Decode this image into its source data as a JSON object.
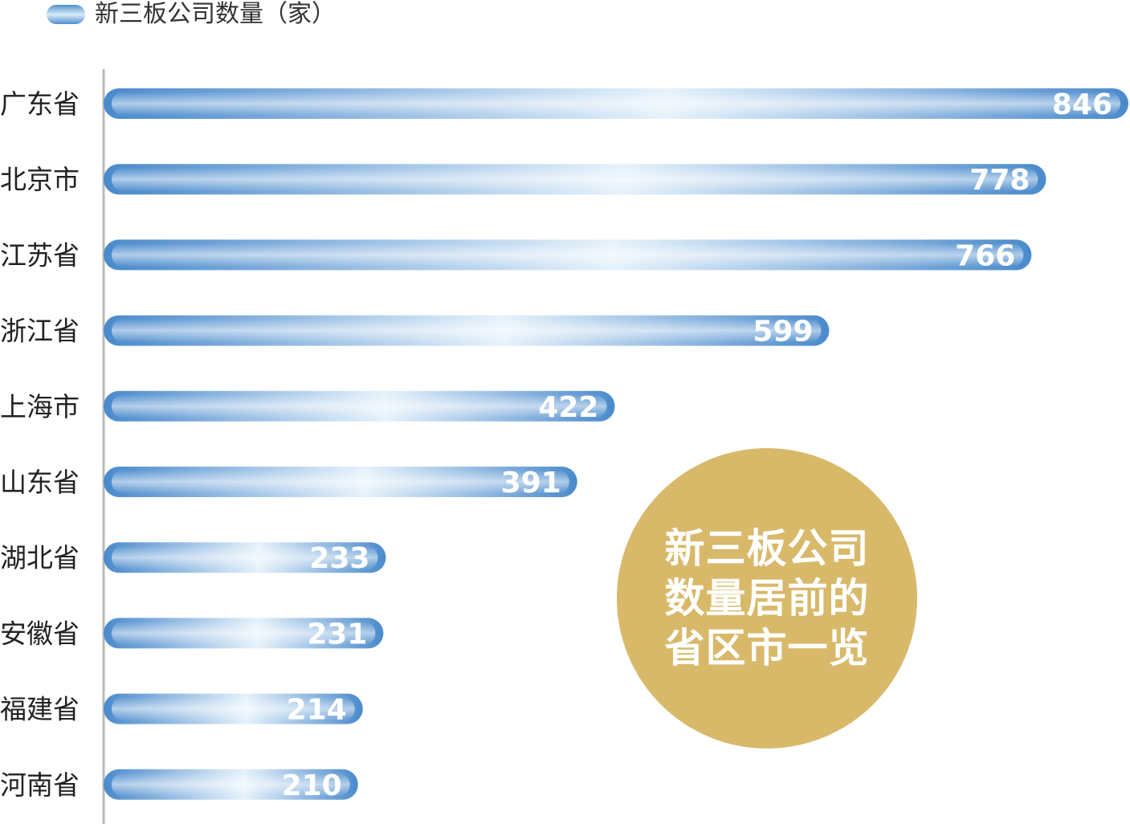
{
  "legend": {
    "label": "新三板公司数量（家）"
  },
  "badge": {
    "text": "新三板公司数量居前的省区市一览"
  },
  "colors": {
    "bar_dark": "#4a8acc",
    "bar_light": "#e6f2fb",
    "badge": "#d8b96a",
    "axis": "#b9b9b9"
  },
  "chart_data": {
    "type": "bar",
    "orientation": "horizontal",
    "categories": [
      "广东省",
      "北京市",
      "江苏省",
      "浙江省",
      "上海市",
      "山东省",
      "湖北省",
      "安徽省",
      "福建省",
      "河南省"
    ],
    "series": [
      {
        "name": "新三板公司数量（家）",
        "values": [
          846,
          778,
          766,
          599,
          422,
          391,
          233,
          231,
          214,
          210
        ]
      }
    ],
    "data_labels": [
      "846",
      "778",
      "766",
      "599",
      "422",
      "391",
      "233",
      "231",
      "214",
      "210"
    ],
    "xlim": [
      0,
      846
    ],
    "legend_position": "top-left",
    "grid": false
  }
}
